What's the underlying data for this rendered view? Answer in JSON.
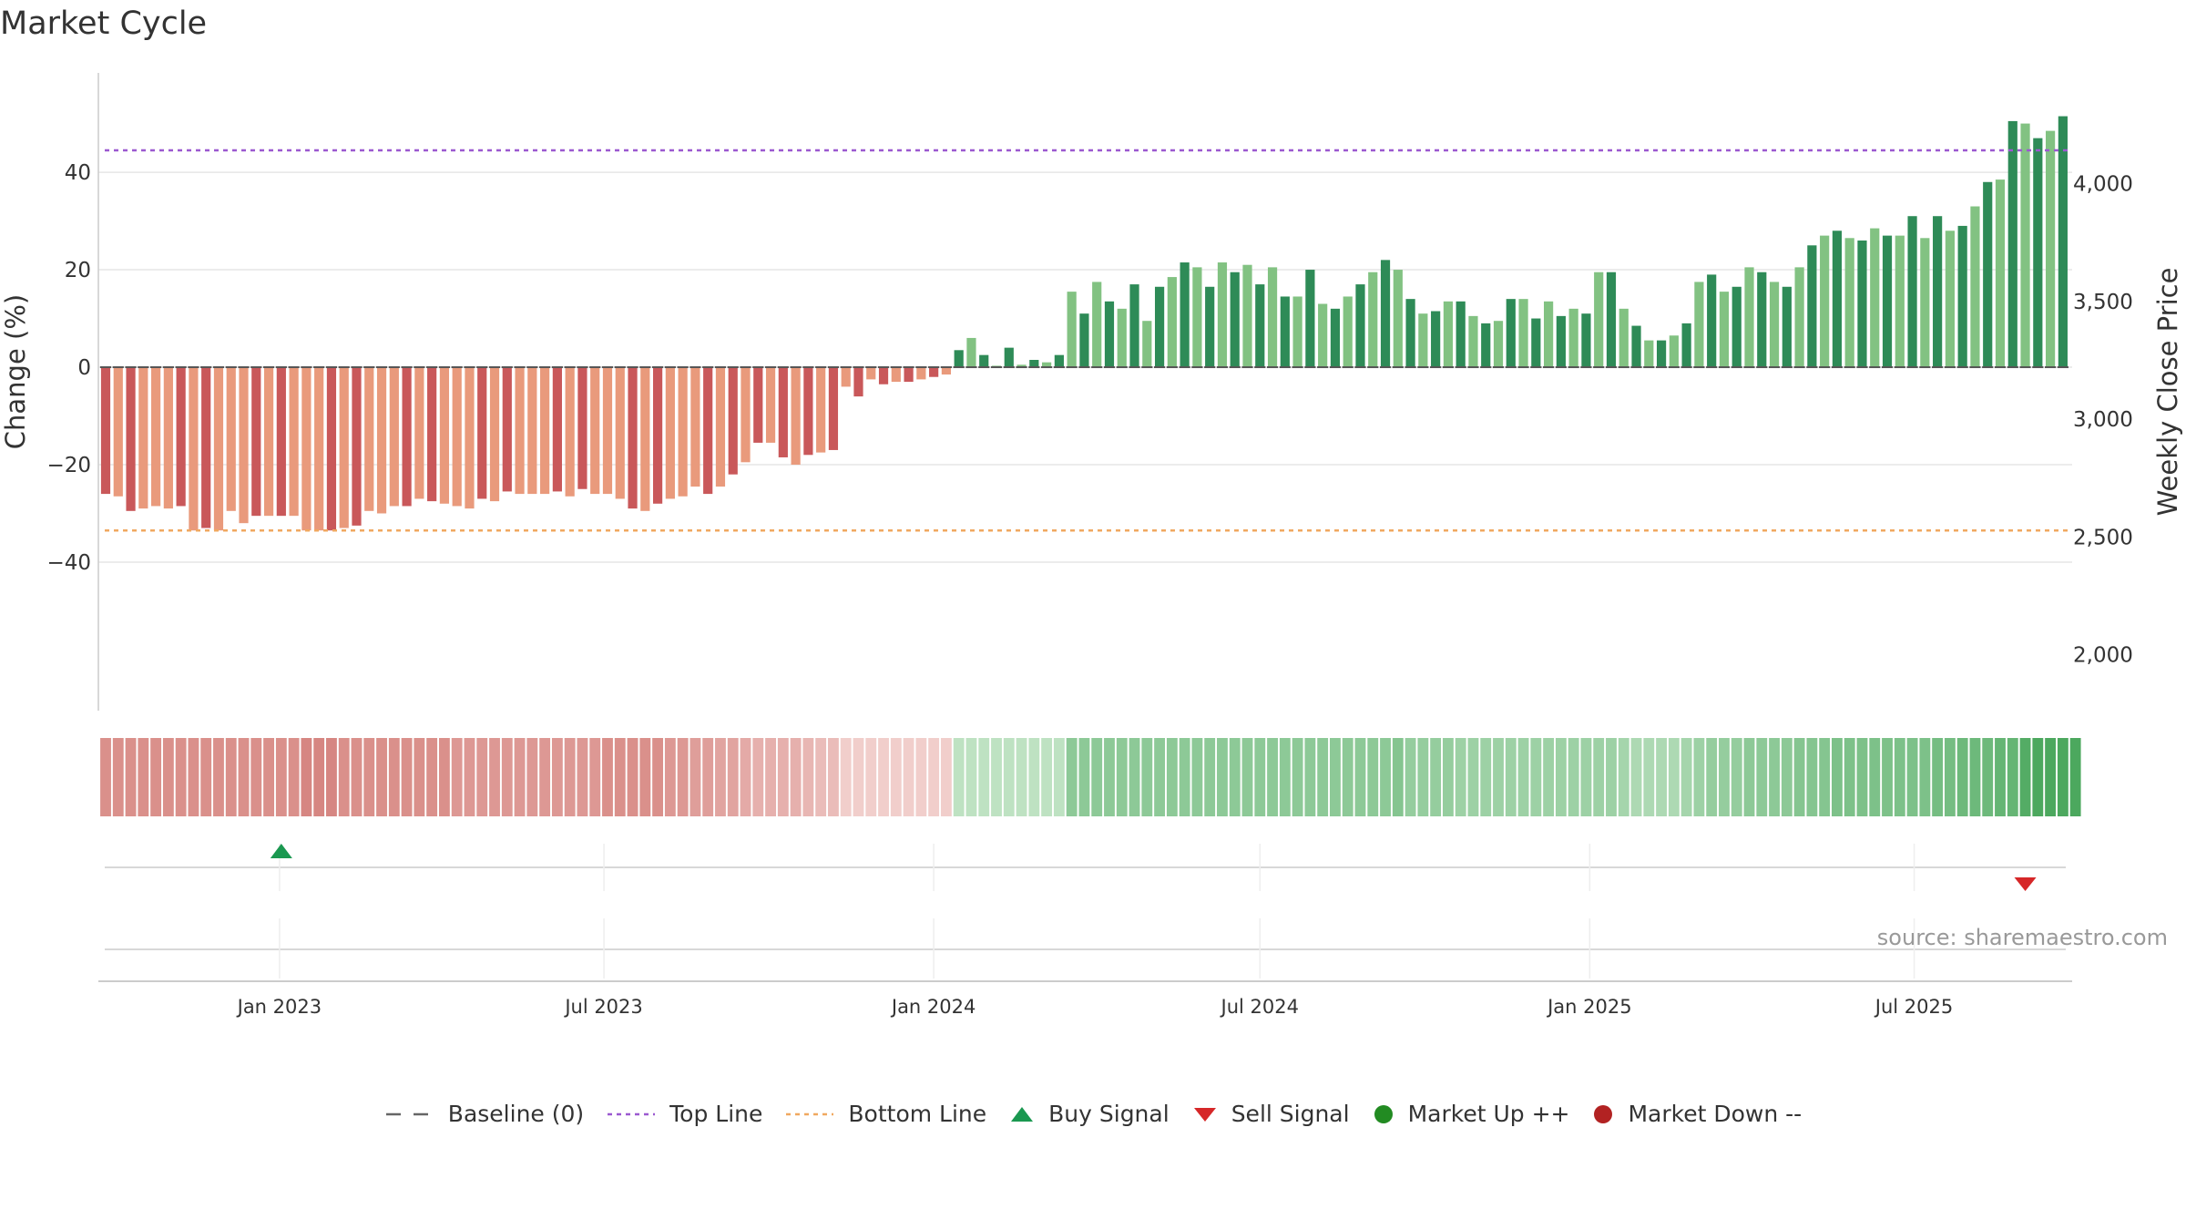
{
  "title": "Market Cycle",
  "source": "source: sharemaestro.com",
  "legend": {
    "baseline": "Baseline (0)",
    "top_line": "Top Line",
    "bottom_line": "Bottom Line",
    "buy_signal": "Buy Signal",
    "sell_signal": "Sell Signal",
    "market_up": "Market Up ++",
    "market_down": "Market Down --"
  },
  "colors": {
    "red_dark": "#c9585a",
    "red_light": "#e99a7c",
    "green_dark": "#2e8b57",
    "green_light": "#82c282",
    "top_line": "#9b59d0",
    "bottom_line": "#f0a860",
    "buy": "#1a9850",
    "sell": "#d62728",
    "market_up": "#228b22",
    "market_down": "#b22222"
  },
  "chart_data": {
    "type": "bar",
    "title": "Market Cycle",
    "ylabel": "Change (%)",
    "y2label": "Weekly Close Price",
    "ylim": [
      -55,
      56
    ],
    "yticks": [
      -40,
      -20,
      0,
      20,
      40
    ],
    "ytick_labels": [
      "−40",
      "−20",
      "0",
      "20",
      "40"
    ],
    "y2ticks": [
      2000,
      2500,
      3000,
      3500,
      4000
    ],
    "y2tick_labels": [
      "2,000",
      "2,500",
      "3,000",
      "3,500",
      "4,000"
    ],
    "x_start": "2022-09-26",
    "x_end": "2025-09-22",
    "x_step_days": 7,
    "xticks": [
      "2023-01-01",
      "2023-07-01",
      "2024-01-01",
      "2024-07-01",
      "2025-01-01",
      "2025-07-01"
    ],
    "xtick_labels": [
      "Jan 2023",
      "Jul 2023",
      "Jan 2024",
      "Jul 2024",
      "Jan 2025",
      "Jul 2025"
    ],
    "top_line": 44.5,
    "bottom_line": -33.5,
    "baseline": 0,
    "values": [
      -26,
      -26.5,
      -29.5,
      -29,
      -28.5,
      -29,
      -28.5,
      -33.5,
      -33,
      -33.5,
      -29.5,
      -32,
      -30.5,
      -30.5,
      -30.5,
      -30.5,
      -33.5,
      -33.5,
      -33.5,
      -33,
      -32.5,
      -29.5,
      -30,
      -28.5,
      -28.5,
      -27,
      -27.5,
      -28,
      -28.5,
      -29,
      -27,
      -27.5,
      -25.5,
      -26,
      -26,
      -26,
      -25.5,
      -26.5,
      -25,
      -26,
      -26,
      -27,
      -29,
      -29.5,
      -28,
      -27,
      -26.5,
      -24.5,
      -26,
      -24.5,
      -22,
      -19.5,
      -15.5,
      -15.5,
      -18.5,
      -20,
      -18,
      -17.5,
      -17,
      -4,
      -6,
      -2.5,
      -3.5,
      -3,
      -3,
      -2.5,
      -2,
      -1.5,
      3.5,
      6,
      2.5,
      0.3,
      4,
      0.5,
      1.5,
      1,
      2.5,
      15.5,
      11,
      17.5,
      13.5,
      12,
      17,
      9.5,
      16.5,
      18.5,
      21.5,
      20.5,
      16.5,
      21.5,
      19.5,
      21,
      17,
      20.5,
      14.5,
      14.5,
      20,
      13,
      12,
      14.5,
      17,
      19.5,
      22,
      20,
      14,
      11,
      11.5,
      13.5,
      13.5,
      10.5,
      9,
      9.5,
      14,
      14,
      10,
      13.5,
      10.5,
      12,
      11,
      19.5,
      19.5,
      12,
      8.5,
      5.5,
      5.5,
      6.5,
      9,
      17.5,
      19,
      15.5,
      16.5,
      20.5,
      19.5,
      17.5,
      16.5,
      20.5,
      25,
      27,
      28,
      26.5,
      26,
      28.5,
      27,
      27,
      31,
      26.5,
      31,
      28,
      29,
      33,
      38,
      38.5,
      50.5,
      50,
      47,
      48.5,
      51.5
    ],
    "intensity_band": [
      -0.72,
      -0.72,
      -0.72,
      -0.72,
      -0.72,
      -0.72,
      -0.72,
      -0.72,
      -0.72,
      -0.72,
      -0.72,
      -0.72,
      -0.72,
      -0.72,
      -0.72,
      -0.72,
      -0.8,
      -0.8,
      -0.8,
      -0.72,
      -0.72,
      -0.72,
      -0.72,
      -0.72,
      -0.72,
      -0.72,
      -0.72,
      -0.72,
      -0.65,
      -0.65,
      -0.65,
      -0.65,
      -0.65,
      -0.65,
      -0.65,
      -0.65,
      -0.65,
      -0.65,
      -0.65,
      -0.65,
      -0.72,
      -0.72,
      -0.72,
      -0.72,
      -0.72,
      -0.65,
      -0.65,
      -0.6,
      -0.6,
      -0.55,
      -0.55,
      -0.5,
      -0.45,
      -0.45,
      -0.45,
      -0.45,
      -0.4,
      -0.35,
      -0.35,
      -0.2,
      -0.2,
      -0.2,
      -0.2,
      -0.2,
      -0.2,
      -0.2,
      -0.2,
      -0.2,
      0.2,
      0.2,
      0.2,
      0.2,
      0.2,
      0.2,
      0.2,
      0.2,
      0.2,
      0.5,
      0.5,
      0.5,
      0.5,
      0.5,
      0.5,
      0.5,
      0.5,
      0.5,
      0.5,
      0.5,
      0.5,
      0.5,
      0.5,
      0.5,
      0.5,
      0.5,
      0.5,
      0.5,
      0.5,
      0.5,
      0.5,
      0.5,
      0.5,
      0.5,
      0.5,
      0.55,
      0.45,
      0.45,
      0.45,
      0.45,
      0.4,
      0.4,
      0.4,
      0.4,
      0.4,
      0.4,
      0.4,
      0.4,
      0.4,
      0.4,
      0.4,
      0.4,
      0.4,
      0.35,
      0.3,
      0.3,
      0.3,
      0.3,
      0.35,
      0.4,
      0.45,
      0.45,
      0.45,
      0.5,
      0.5,
      0.5,
      0.5,
      0.55,
      0.55,
      0.55,
      0.6,
      0.6,
      0.6,
      0.6,
      0.6,
      0.6,
      0.6,
      0.6,
      0.65,
      0.65,
      0.7,
      0.7,
      0.7,
      0.75,
      0.75,
      0.85,
      0.9,
      0.9,
      0.9,
      0.9
    ],
    "buy_signals": [
      "2023-01-02"
    ],
    "sell_signals": [
      "2025-09-01"
    ]
  }
}
